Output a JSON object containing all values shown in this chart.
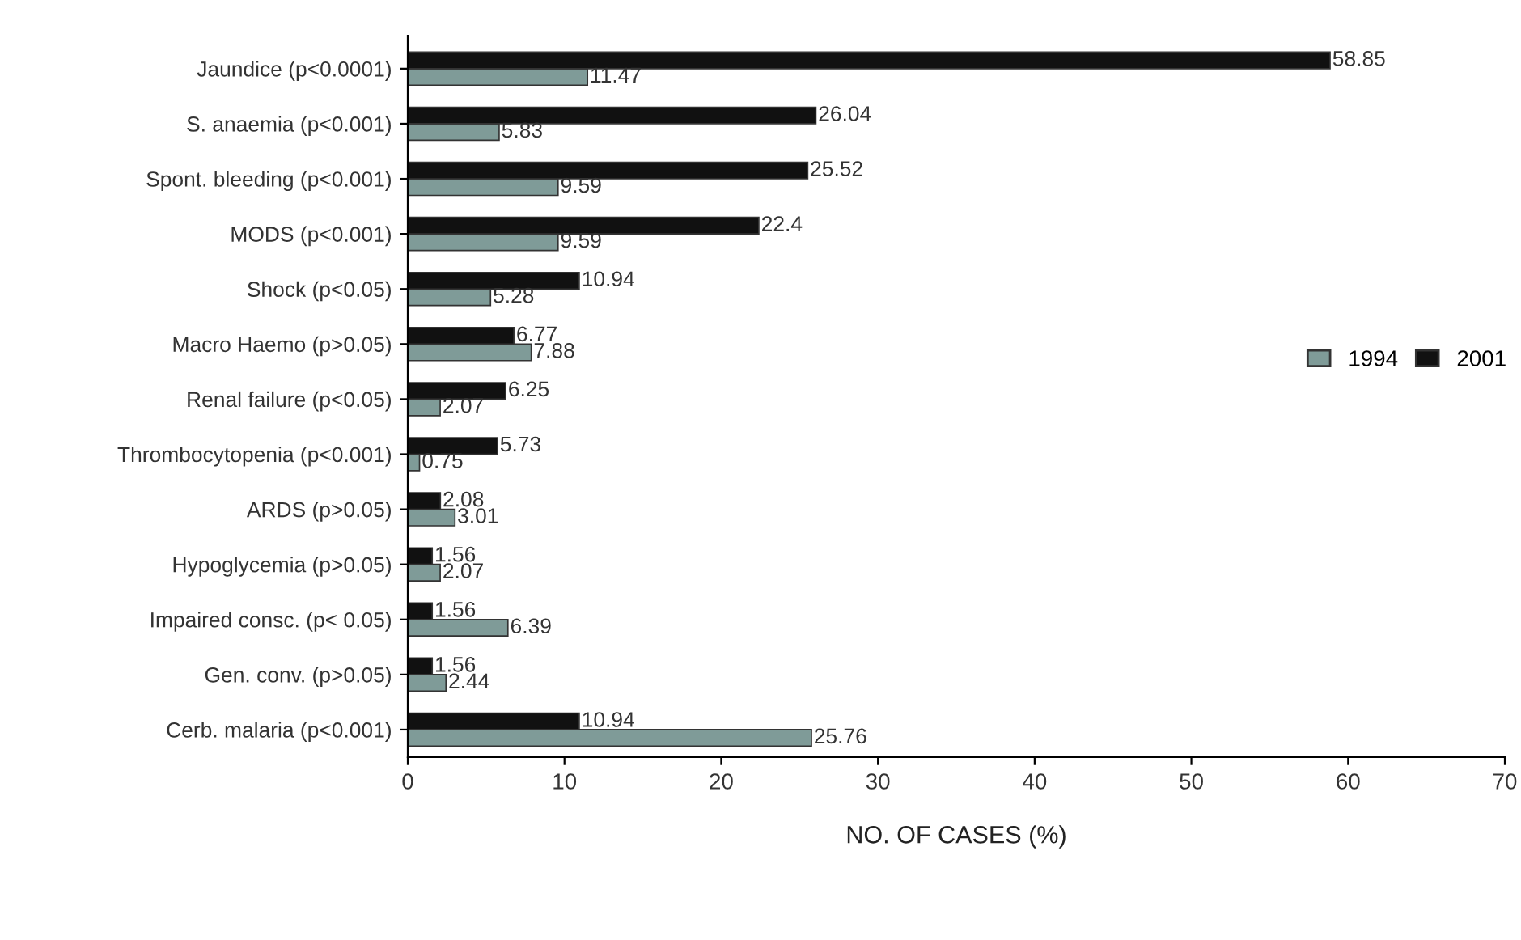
{
  "chart_data": {
    "type": "bar",
    "orientation": "horizontal",
    "xlabel": "NO. OF CASES (%)",
    "categories": [
      "Jaundice (p<0.0001)",
      "S. anaemia (p<0.001)",
      "Spont. bleeding (p<0.001)",
      "MODS (p<0.001)",
      "Shock (p<0.05)",
      "Macro Haemo (p>0.05)",
      "Renal failure (p<0.05)",
      "Thrombocytopenia (p<0.001)",
      "ARDS (p>0.05)",
      "Hypoglycemia (p>0.05)",
      "Impaired consc. (p< 0.05)",
      "Gen. conv. (p>0.05)",
      "Cerb. malaria (p<0.001)"
    ],
    "series": [
      {
        "name": "1994",
        "color": "#7f9b98",
        "values": [
          11.47,
          5.83,
          9.59,
          9.59,
          5.28,
          7.88,
          2.07,
          0.75,
          3.01,
          2.07,
          6.39,
          2.44,
          25.76
        ]
      },
      {
        "name": "2001",
        "color": "#111111",
        "values": [
          58.85,
          26.04,
          25.52,
          22.4,
          10.94,
          6.77,
          6.25,
          5.73,
          2.08,
          1.56,
          1.56,
          1.56,
          10.94
        ]
      }
    ],
    "xlim": [
      0,
      70
    ],
    "xticks": [
      0,
      10,
      20,
      30,
      40,
      50,
      60,
      70
    ],
    "data_labels": true,
    "legend": "right",
    "grid": false
  }
}
